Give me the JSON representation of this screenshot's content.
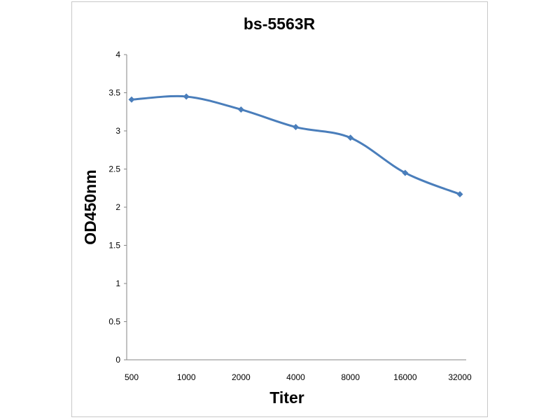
{
  "chart_data": {
    "type": "line",
    "title": "bs-5563R",
    "xlabel": "Titer",
    "ylabel": "OD450nm",
    "categories": [
      "500",
      "1000",
      "2000",
      "4000",
      "8000",
      "16000",
      "32000"
    ],
    "series": [
      {
        "values": [
          3.41,
          3.45,
          3.28,
          3.05,
          2.91,
          2.45,
          2.17
        ],
        "color": "#4a7ebb"
      }
    ],
    "ylim": [
      0,
      4
    ],
    "yticks": [
      "0",
      "0.5",
      "1",
      "1.5",
      "2",
      "2.5",
      "3",
      "3.5",
      "4"
    ],
    "grid": false,
    "legend": "none"
  }
}
